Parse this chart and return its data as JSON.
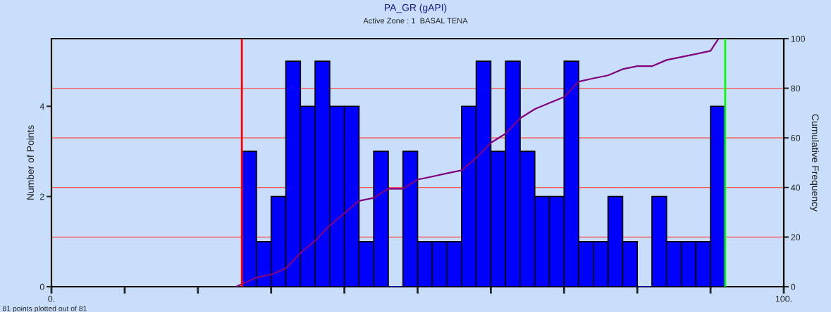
{
  "chart_data": {
    "type": "histogram",
    "title": "PA_GR (gAPI)",
    "subtitle": "Active Zone : 1  BASAL TENA",
    "ylabel": "Number of Points",
    "y2label": "Cumulative Frequency",
    "bins": [
      26,
      28,
      30,
      32,
      34,
      36,
      38,
      40,
      42,
      44,
      46,
      48,
      50,
      52,
      54,
      56,
      58,
      60,
      62,
      64,
      66,
      68,
      70,
      72,
      74,
      76,
      78,
      80,
      82,
      84,
      86,
      88,
      90,
      92
    ],
    "values": [
      3,
      1,
      2,
      5,
      4,
      5,
      4,
      4,
      1,
      3,
      0,
      3,
      1,
      1,
      1,
      4,
      5,
      3,
      5,
      3,
      2,
      2,
      5,
      1,
      1,
      2,
      1,
      0,
      2,
      1,
      1,
      1,
      4
    ],
    "color": "#0000ff",
    "series": [
      {
        "type": "line",
        "axis": "y2",
        "color": "#800080",
        "x": [
          25.2,
          28,
          30,
          32,
          34,
          36,
          38,
          40,
          42,
          44,
          46,
          48,
          50,
          52,
          54,
          56,
          58,
          60,
          62,
          64,
          66,
          68,
          70,
          72,
          74,
          76,
          78,
          80,
          82,
          84,
          86,
          88,
          90,
          91.1
        ],
        "values": [
          0,
          3.7,
          4.9,
          7.4,
          13.6,
          18.5,
          24.7,
          29.6,
          34.6,
          35.8,
          39.5,
          39.5,
          43.2,
          44.4,
          45.7,
          46.9,
          51.9,
          58.0,
          61.7,
          67.9,
          71.6,
          74.1,
          76.5,
          82.7,
          84.0,
          85.2,
          87.7,
          88.9,
          88.9,
          91.4,
          92.6,
          93.8,
          95.1,
          100
        ]
      }
    ],
    "xlim": [
      0,
      100
    ],
    "xticks": [
      {
        "value": 0,
        "label": "0."
      },
      {
        "value": 10,
        "label": null
      },
      {
        "value": 20,
        "label": null
      },
      {
        "value": 30,
        "label": null
      },
      {
        "value": 40,
        "label": null
      },
      {
        "value": 50,
        "label": null
      },
      {
        "value": 60,
        "label": null
      },
      {
        "value": 70,
        "label": null
      },
      {
        "value": 80,
        "label": null
      },
      {
        "value": 90,
        "label": null
      },
      {
        "value": 100,
        "label": "100."
      }
    ],
    "ylim": [
      0,
      5.5
    ],
    "yticks": [
      0,
      2,
      4
    ],
    "y2lim": [
      0,
      100
    ],
    "y2ticks": [
      0,
      20,
      40,
      60,
      80,
      100
    ],
    "ref_lines": [
      {
        "axis": "y2",
        "value": 20,
        "color": "#ff5050"
      },
      {
        "axis": "y2",
        "value": 40,
        "color": "#ff5050"
      },
      {
        "axis": "y2",
        "value": 60,
        "color": "#ff5050"
      },
      {
        "axis": "y2",
        "value": 80,
        "color": "#ff5050"
      },
      {
        "axis": "x",
        "value": 26,
        "color": "#ff0000"
      },
      {
        "axis": "x",
        "value": 92,
        "color": "#00ff00"
      }
    ],
    "annotations": [
      "81 points plotted out of 81"
    ],
    "grid": false,
    "legend": false
  }
}
